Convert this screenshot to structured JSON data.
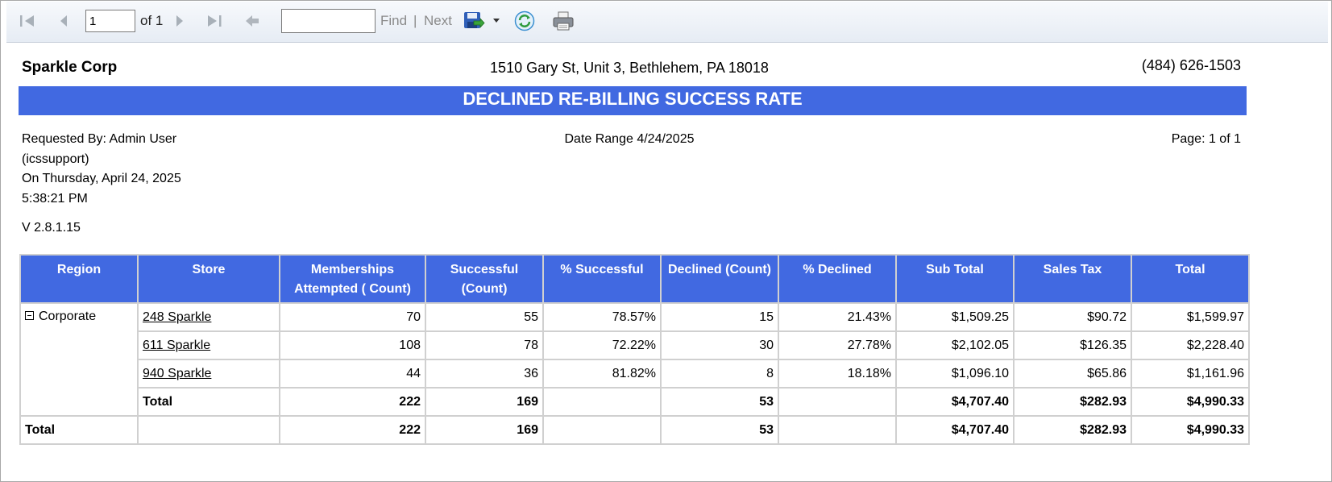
{
  "toolbar": {
    "page_value": "1",
    "page_of": "of 1",
    "find_value": "",
    "find_label": "Find",
    "separator": "|",
    "next_label": "Next",
    "icons": [
      "first-page-icon",
      "previous-page-icon",
      "next-page-icon",
      "last-page-icon",
      "back-icon",
      "export-save-icon",
      "dropdown-arrow-icon",
      "refresh-icon",
      "print-icon"
    ]
  },
  "report": {
    "company": "Sparkle Corp",
    "address": "1510 Gary St, Unit 3, Bethlehem, PA 18018",
    "phone": "(484) 626-1503",
    "title": "DECLINED RE-BILLING SUCCESS RATE",
    "requested_by_1": "Requested By: Admin User",
    "requested_by_2": "(icssupport)",
    "requested_on": "On Thursday, April 24, 2025",
    "requested_time": "5:38:21 PM",
    "version": "V 2.8.1.15",
    "date_range": "Date Range 4/24/2025",
    "page_info": "Page: 1 of 1",
    "accent_color": "#4169e1"
  },
  "table": {
    "headers": [
      "Region",
      "Store",
      "Memberships Attempted ( Count)",
      "Successful (Count)",
      "% Successful",
      "Declined (Count)",
      "% Declined",
      "Sub Total",
      "Sales Tax",
      "Total"
    ],
    "region": "Corporate",
    "rows": [
      {
        "store": "248 Sparkle",
        "attempted": "70",
        "successful": "55",
        "pct_successful": "78.57%",
        "declined": "15",
        "pct_declined": "21.43%",
        "sub_total": "$1,509.25",
        "sales_tax": "$90.72",
        "total": "$1,599.97"
      },
      {
        "store": "611 Sparkle",
        "attempted": "108",
        "successful": "78",
        "pct_successful": "72.22%",
        "declined": "30",
        "pct_declined": "27.78%",
        "sub_total": "$2,102.05",
        "sales_tax": "$126.35",
        "total": "$2,228.40"
      },
      {
        "store": "940 Sparkle",
        "attempted": "44",
        "successful": "36",
        "pct_successful": "81.82%",
        "declined": "8",
        "pct_declined": "18.18%",
        "sub_total": "$1,096.10",
        "sales_tax": "$65.86",
        "total": "$1,161.96"
      }
    ],
    "region_total": {
      "label": "Total",
      "attempted": "222",
      "successful": "169",
      "declined": "53",
      "sub_total": "$4,707.40",
      "sales_tax": "$282.93",
      "total": "$4,990.33"
    },
    "grand_total": {
      "label": "Total",
      "attempted": "222",
      "successful": "169",
      "declined": "53",
      "sub_total": "$4,707.40",
      "sales_tax": "$282.93",
      "total": "$4,990.33"
    }
  }
}
